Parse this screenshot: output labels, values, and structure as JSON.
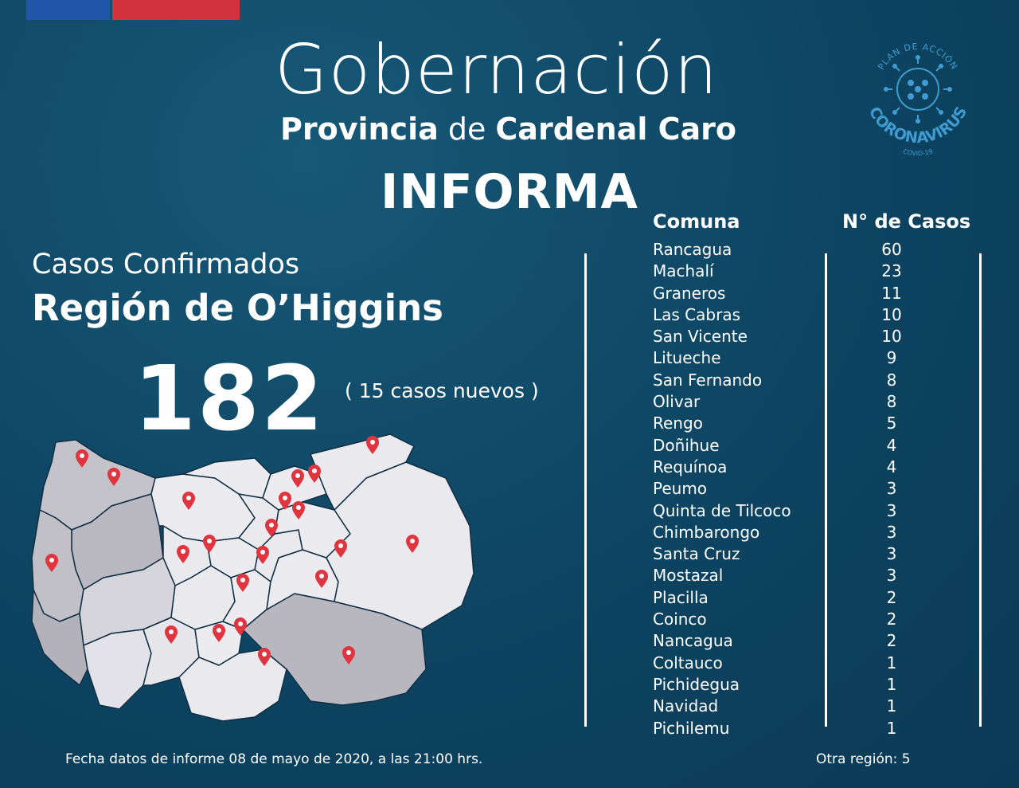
{
  "header": {
    "title": "Gobernación",
    "subtitle_bold1": "Provincia",
    "subtitle_connector": " de ",
    "subtitle_bold2": "Cardenal Caro",
    "informa": "INFORMA"
  },
  "logo": {
    "top_text": "PLAN DE ACCIÓN",
    "main_text": "CORONAVIRUS",
    "bottom_text": "COVID-19",
    "icon": "virus-icon"
  },
  "summary": {
    "casos_label": "Casos Confirmados",
    "region_label": "Región de O’Higgins",
    "total": "182",
    "new_cases": "( 15 casos nuevos )"
  },
  "table": {
    "header_comuna": "Comuna",
    "header_casos": "N° de Casos",
    "rows": [
      {
        "comuna": "Rancagua",
        "casos": "60"
      },
      {
        "comuna": "Machalí",
        "casos": "23"
      },
      {
        "comuna": "Graneros",
        "casos": "11"
      },
      {
        "comuna": "Las Cabras",
        "casos": "10"
      },
      {
        "comuna": "San Vicente",
        "casos": "10"
      },
      {
        "comuna": "Litueche",
        "casos": "9"
      },
      {
        "comuna": "San Fernando",
        "casos": "8"
      },
      {
        "comuna": "Olivar",
        "casos": "8"
      },
      {
        "comuna": "Rengo",
        "casos": "5"
      },
      {
        "comuna": "Doñihue",
        "casos": "4"
      },
      {
        "comuna": "Requínoa",
        "casos": "4"
      },
      {
        "comuna": "Peumo",
        "casos": "3"
      },
      {
        "comuna": "Quinta de Tilcoco",
        "casos": "3"
      },
      {
        "comuna": "Chimbarongo",
        "casos": "3"
      },
      {
        "comuna": "Santa Cruz",
        "casos": "3"
      },
      {
        "comuna": "Mostazal",
        "casos": "3"
      },
      {
        "comuna": "Placilla",
        "casos": "2"
      },
      {
        "comuna": "Coinco",
        "casos": "2"
      },
      {
        "comuna": "Nancagua",
        "casos": "2"
      },
      {
        "comuna": "Coltauco",
        "casos": "1"
      },
      {
        "comuna": "Pichidegua",
        "casos": "1"
      },
      {
        "comuna": "Navidad",
        "casos": "1"
      },
      {
        "comuna": "Pichilemu",
        "casos": "1"
      }
    ]
  },
  "footer": {
    "fecha": "Fecha datos de informe 08 de mayo de 2020, a las 21:00 hrs.",
    "otra_region": "Otra región: 5"
  },
  "colors": {
    "background": "#0d4461",
    "flag_blue": "#1f56a8",
    "flag_red": "#d2323e",
    "pin": "#e0343f",
    "map_light": "#e9e9ee",
    "map_dark": "#b9b8c0",
    "logo": "#3f9bd0"
  }
}
